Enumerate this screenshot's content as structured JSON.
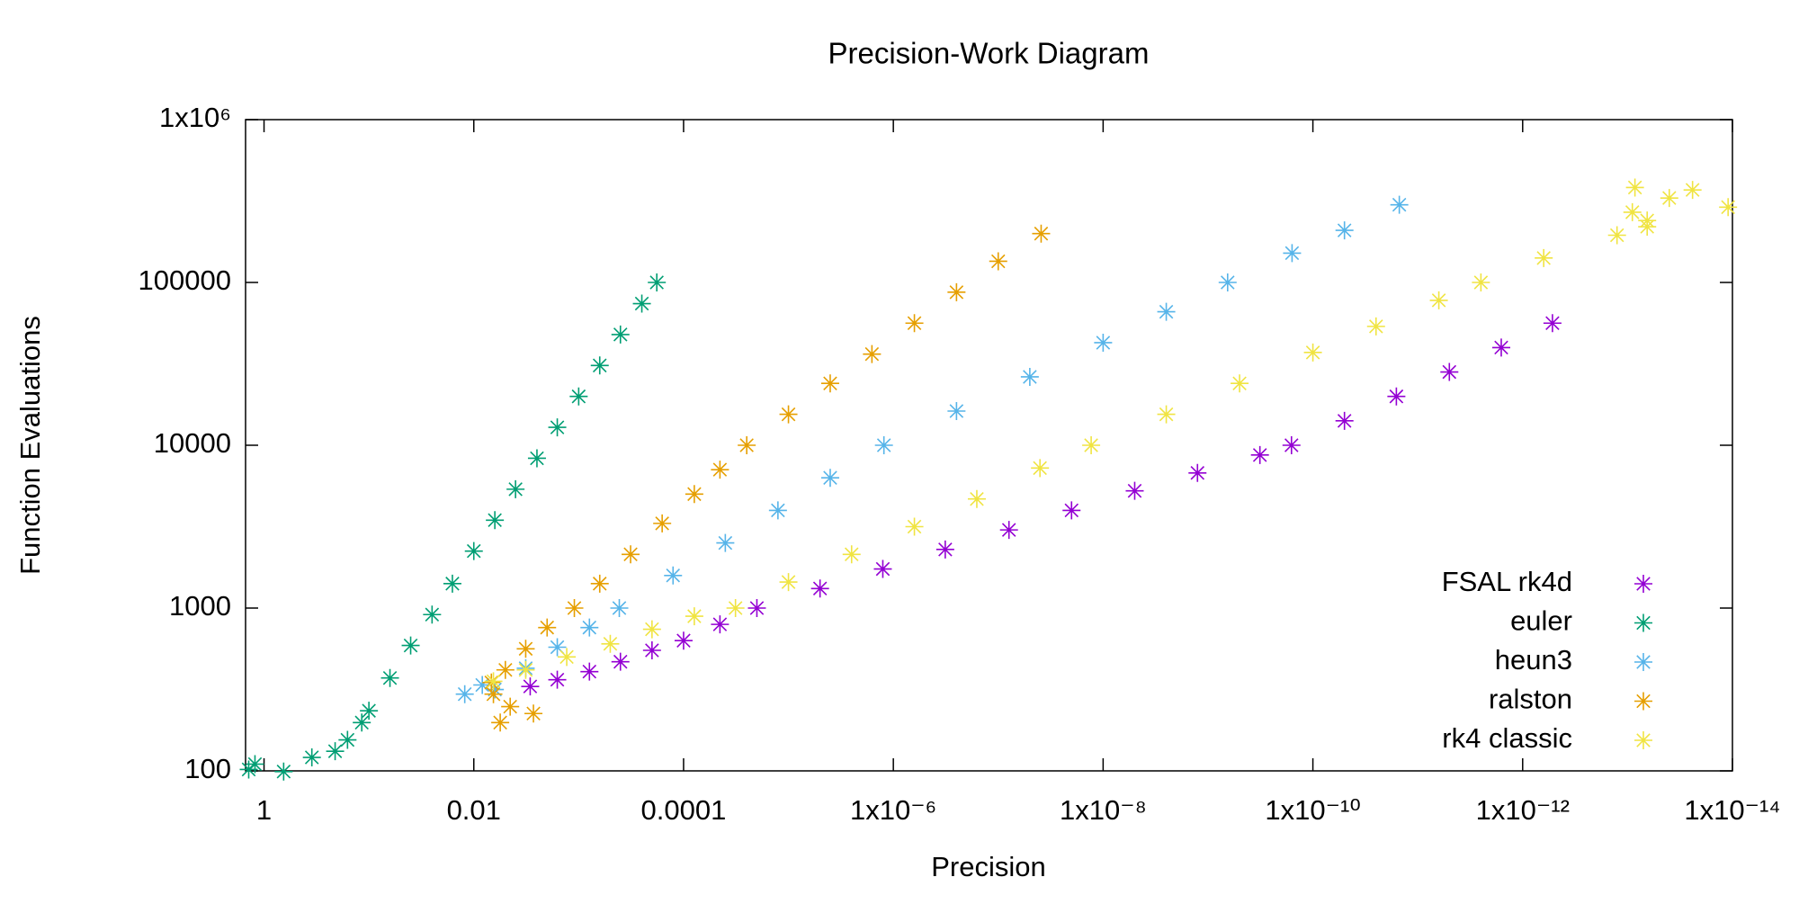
{
  "chart_data": {
    "type": "scatter",
    "title": "Precision-Work Diagram",
    "x_label": "Precision",
    "y_label": "Function Evaluations",
    "x_log": true,
    "y_log": true,
    "xlim": [
      1.5,
      1e-14
    ],
    "ylim": [
      100,
      1000000
    ],
    "xticks": [
      1,
      0.01,
      0.0001,
      {
        "value": 1e-06,
        "label": "1x10⁻⁶"
      },
      {
        "value": 1e-08,
        "label": "1x10⁻⁸"
      },
      {
        "value": 1e-10,
        "label": "1x10⁻¹⁰"
      },
      {
        "value": 1e-12,
        "label": "1x10⁻¹²"
      },
      {
        "value": 1e-14,
        "label": "1x10⁻¹⁴"
      }
    ],
    "yticks": [
      100,
      1000,
      10000,
      100000,
      {
        "value": 1000000,
        "label": "1x10⁶"
      }
    ],
    "legend": "bottom right",
    "series": [
      {
        "name": "FSAL rk4d",
        "color": "#9400d3",
        "x": [
          0.0029,
          0.0016,
          0.00079,
          0.0004,
          0.0002,
          0.0001,
          4.5e-05,
          2e-05,
          5e-06,
          1.26e-06,
          3.2e-07,
          7.9e-08,
          2e-08,
          5e-09,
          1.26e-09,
          3.2e-10,
          1.6e-10,
          5e-11,
          1.6e-11,
          5e-12,
          1.6e-12,
          5.2e-13
        ],
        "values": [
          330,
          363,
          407,
          468,
          550,
          631,
          794,
          1000,
          1318,
          1738,
          2291,
          3020,
          3981,
          5248,
          6761,
          8710,
          10000,
          14125,
          19953,
          28184,
          39811,
          56234
        ]
      },
      {
        "name": "euler",
        "color": "#009e73",
        "x": [
          1.4,
          1.22,
          0.65,
          0.35,
          0.21,
          0.16,
          0.117,
          0.1,
          0.063,
          0.04,
          0.025,
          0.016,
          0.01,
          0.0063,
          0.004,
          0.0025,
          0.0016,
          0.001,
          0.00063,
          0.0004,
          0.00025,
          0.00018
        ],
        "values": [
          102,
          110,
          99,
          121,
          132,
          155,
          198,
          234,
          372,
          589,
          912,
          1413,
          2239,
          3467,
          5370,
          8318,
          12882,
          19953,
          30903,
          47863,
          74131,
          100000
        ]
      },
      {
        "name": "heun3",
        "color": "#56b4e9",
        "x": [
          0.0122,
          0.0083,
          0.0063,
          0.0032,
          0.0016,
          0.00079,
          0.00041,
          0.000126,
          4e-05,
          1.26e-05,
          4e-06,
          1.23e-06,
          2.5e-07,
          5e-08,
          1e-08,
          2.5e-09,
          6.5e-10,
          1.58e-10,
          5e-11,
          1.5e-11
        ],
        "values": [
          296,
          337,
          316,
          427,
          575,
          759,
          1000,
          1585,
          2512,
          3981,
          6310,
          10000,
          16218,
          26303,
          42658,
          66069,
          100000,
          151356,
          208930,
          300000
        ]
      },
      {
        "name": "ralston",
        "color": "#e69f00",
        "x": [
          0.0056,
          0.0027,
          0.0045,
          0.0065,
          0.0068,
          0.005,
          0.0032,
          0.002,
          0.0011,
          0.00063,
          0.00032,
          0.00016,
          7.9e-05,
          4.5e-05,
          2.5e-05,
          1e-05,
          4e-06,
          1.6e-06,
          6.3e-07,
          2.5e-07,
          1e-07,
          3.9e-08
        ],
        "values": [
          198,
          225,
          248,
          296,
          349,
          417,
          562,
          759,
          1000,
          1413,
          2138,
          3311,
          5012,
          7079,
          10000,
          15488,
          23988,
          36308,
          56234,
          87096,
          134896,
          199526
        ]
      },
      {
        "name": "rk4 classic",
        "color": "#f0e442",
        "x": [
          0.0065,
          0.0032,
          0.0013,
          0.0005,
          0.0002,
          7.9e-05,
          3.2e-05,
          1e-05,
          2.5e-06,
          6.3e-07,
          1.6e-07,
          4e-08,
          1.3e-08,
          2.5e-09,
          5e-10,
          1e-10,
          2.5e-11,
          6.3e-12,
          2.5e-12,
          6.3e-13,
          1.26e-13,
          8.5e-14,
          9e-14,
          6.5e-14,
          6.5e-14,
          4e-14,
          2.4e-14,
          1.1e-14
        ],
        "values": [
          355,
          417,
          501,
          603,
          741,
          891,
          1000,
          1445,
          2138,
          3162,
          4677,
          7244,
          10000,
          15488,
          23988,
          37154,
          53703,
          77625,
          100000,
          141254,
          195000,
          383000,
          270000,
          240000,
          220000,
          330000,
          370000,
          290000
        ]
      }
    ]
  }
}
